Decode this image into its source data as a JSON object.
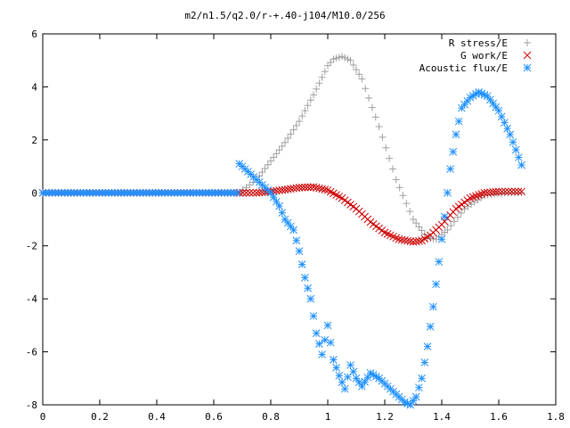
{
  "chart_data": {
    "type": "scatter",
    "title": "m2/n1.5/q2.0/r-+.40-j104/M10.0/256",
    "xlabel": "",
    "ylabel": "",
    "xlim": [
      0,
      1.8
    ],
    "ylim": [
      -8,
      6
    ],
    "xticks": [
      "0",
      "0.2",
      "0.4",
      "0.6",
      "0.8",
      "1",
      "1.2",
      "1.4",
      "1.6",
      "1.8"
    ],
    "yticks": [
      "6",
      "4",
      "2",
      "0",
      "-2",
      "-4",
      "-6",
      "-8"
    ],
    "legend_position": "top-right",
    "grid": false,
    "series": [
      {
        "name": "R stress/E",
        "marker": "plus",
        "color": "#a0a0a0",
        "x": [
          0.69,
          0.75,
          0.8,
          0.85,
          0.9,
          0.95,
          1.0,
          1.02,
          1.05,
          1.08,
          1.12,
          1.18,
          1.24,
          1.3,
          1.35,
          1.38,
          1.42,
          1.48,
          1.55,
          1.62,
          1.68
        ],
        "y": [
          0.0,
          0.5,
          1.2,
          1.9,
          2.7,
          3.7,
          4.8,
          5.05,
          5.15,
          5.0,
          4.3,
          2.5,
          0.5,
          -1.0,
          -1.7,
          -1.75,
          -1.4,
          -0.6,
          -0.1,
          0.0,
          0.0
        ]
      },
      {
        "name": "G work/E",
        "marker": "cross",
        "color": "#cc0000",
        "x": [
          0.69,
          0.75,
          0.8,
          0.85,
          0.9,
          0.95,
          1.0,
          1.05,
          1.1,
          1.15,
          1.2,
          1.25,
          1.3,
          1.33,
          1.36,
          1.4,
          1.45,
          1.5,
          1.55,
          1.6,
          1.68
        ],
        "y": [
          0.0,
          0.0,
          0.05,
          0.12,
          0.2,
          0.22,
          0.1,
          -0.2,
          -0.6,
          -1.1,
          -1.5,
          -1.75,
          -1.85,
          -1.8,
          -1.6,
          -1.2,
          -0.6,
          -0.2,
          0.0,
          0.05,
          0.05
        ]
      },
      {
        "name": "Acoustic flux/E",
        "marker": "star",
        "color": "#1e90ff",
        "x": [
          0.69,
          0.72,
          0.75,
          0.78,
          0.8,
          0.83,
          0.85,
          0.88,
          0.9,
          0.92,
          0.94,
          0.96,
          0.98,
          1.0,
          1.02,
          1.04,
          1.06,
          1.08,
          1.1,
          1.12,
          1.15,
          1.18,
          1.21,
          1.24,
          1.27,
          1.29,
          1.31,
          1.33,
          1.35,
          1.37,
          1.39,
          1.41,
          1.43,
          1.45,
          1.47,
          1.5,
          1.53,
          1.56,
          1.6,
          1.64,
          1.68
        ],
        "y": [
          1.1,
          0.8,
          0.5,
          0.2,
          0.0,
          -0.5,
          -1.0,
          -1.4,
          -2.2,
          -3.2,
          -4.0,
          -5.3,
          -6.1,
          -5.0,
          -6.3,
          -6.9,
          -7.4,
          -6.5,
          -7.0,
          -7.3,
          -6.8,
          -7.0,
          -7.3,
          -7.6,
          -7.9,
          -8.0,
          -7.7,
          -7.0,
          -5.8,
          -4.3,
          -2.6,
          -0.9,
          0.9,
          2.2,
          3.2,
          3.6,
          3.8,
          3.65,
          3.1,
          2.2,
          1.05
        ]
      }
    ]
  }
}
